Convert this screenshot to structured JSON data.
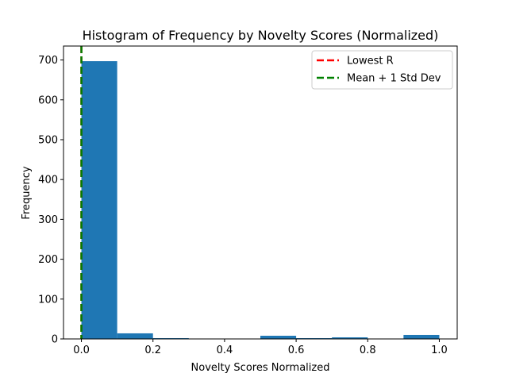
{
  "chart_data": {
    "type": "bar",
    "title": "Histogram of Frequency by Novelty Scores (Normalized)",
    "xlabel": "Novelty Scores Normalized",
    "ylabel": "Frequency",
    "xlim": [
      -0.05,
      1.05
    ],
    "ylim": [
      0,
      735
    ],
    "bin_edges": [
      0.0,
      0.1,
      0.2,
      0.3,
      0.4,
      0.5,
      0.6,
      0.7,
      0.8,
      0.9,
      1.0
    ],
    "values": [
      697,
      14,
      2,
      1,
      1,
      8,
      2,
      4,
      1,
      10
    ],
    "bar_color": "#1f77b4",
    "x_ticks": [
      0.0,
      0.2,
      0.4,
      0.6,
      0.8,
      1.0
    ],
    "x_tick_labels": [
      "0.0",
      "0.2",
      "0.4",
      "0.6",
      "0.8",
      "1.0"
    ],
    "y_ticks": [
      0,
      100,
      200,
      300,
      400,
      500,
      600,
      700
    ],
    "y_tick_labels": [
      "0",
      "100",
      "200",
      "300",
      "400",
      "500",
      "600",
      "700"
    ],
    "grid": false,
    "legend_position": "top-right",
    "vlines": [
      {
        "name": "Lowest R",
        "x": 0.0,
        "color": "#ff0000",
        "style": "dashed"
      },
      {
        "name": "Mean + 1 Std Dev",
        "x": 0.0,
        "color": "#008000",
        "style": "dashed"
      }
    ]
  }
}
